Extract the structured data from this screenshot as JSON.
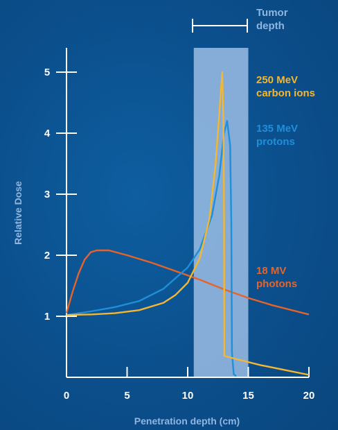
{
  "chart_data": {
    "type": "line",
    "xlabel": "Penetration depth (cm)",
    "ylabel": "Relative Dose",
    "xlim": [
      0,
      20
    ],
    "ylim": [
      0,
      5.5
    ],
    "x_ticks": [
      0,
      5,
      10,
      15,
      20
    ],
    "y_ticks": [
      1,
      2,
      3,
      4,
      5
    ],
    "tumor_region": {
      "label_line1": "Tumor",
      "label_line2": "depth",
      "x_start": 10.5,
      "x_end": 15
    },
    "series": [
      {
        "name_line1": "250 MeV",
        "name_line2": "carbon ions",
        "color": "#f5b731",
        "points": [
          [
            0,
            1.02
          ],
          [
            2,
            1.03
          ],
          [
            4,
            1.05
          ],
          [
            6,
            1.1
          ],
          [
            8,
            1.22
          ],
          [
            9,
            1.35
          ],
          [
            10,
            1.55
          ],
          [
            11,
            1.95
          ],
          [
            11.8,
            2.6
          ],
          [
            12.3,
            3.5
          ],
          [
            12.6,
            4.3
          ],
          [
            12.85,
            5.0
          ],
          [
            12.95,
            4.2
          ],
          [
            13.0,
            2.5
          ],
          [
            13.02,
            0.35
          ],
          [
            14,
            0.3
          ],
          [
            16,
            0.2
          ],
          [
            18,
            0.12
          ],
          [
            20,
            0.04
          ]
        ]
      },
      {
        "name_line1": "135 MeV",
        "name_line2": "protons",
        "color": "#1e8fd8",
        "points": [
          [
            0,
            1.02
          ],
          [
            2,
            1.08
          ],
          [
            4,
            1.15
          ],
          [
            6,
            1.25
          ],
          [
            8,
            1.45
          ],
          [
            10,
            1.8
          ],
          [
            11,
            2.1
          ],
          [
            12,
            2.65
          ],
          [
            12.6,
            3.3
          ],
          [
            13.0,
            4.0
          ],
          [
            13.25,
            4.2
          ],
          [
            13.5,
            3.8
          ],
          [
            13.6,
            2.5
          ],
          [
            13.65,
            0.4
          ],
          [
            13.8,
            0.05
          ],
          [
            14,
            0.02
          ]
        ]
      },
      {
        "name_line1": "18 MV",
        "name_line2": "photons",
        "color": "#e8632a",
        "points": [
          [
            0,
            1.05
          ],
          [
            0.5,
            1.4
          ],
          [
            1,
            1.7
          ],
          [
            1.5,
            1.93
          ],
          [
            2,
            2.05
          ],
          [
            2.5,
            2.08
          ],
          [
            3.5,
            2.08
          ],
          [
            5,
            2.0
          ],
          [
            7,
            1.88
          ],
          [
            9,
            1.74
          ],
          [
            11,
            1.6
          ],
          [
            13,
            1.44
          ],
          [
            15,
            1.3
          ],
          [
            17,
            1.18
          ],
          [
            19,
            1.08
          ],
          [
            20,
            1.03
          ]
        ]
      }
    ]
  }
}
